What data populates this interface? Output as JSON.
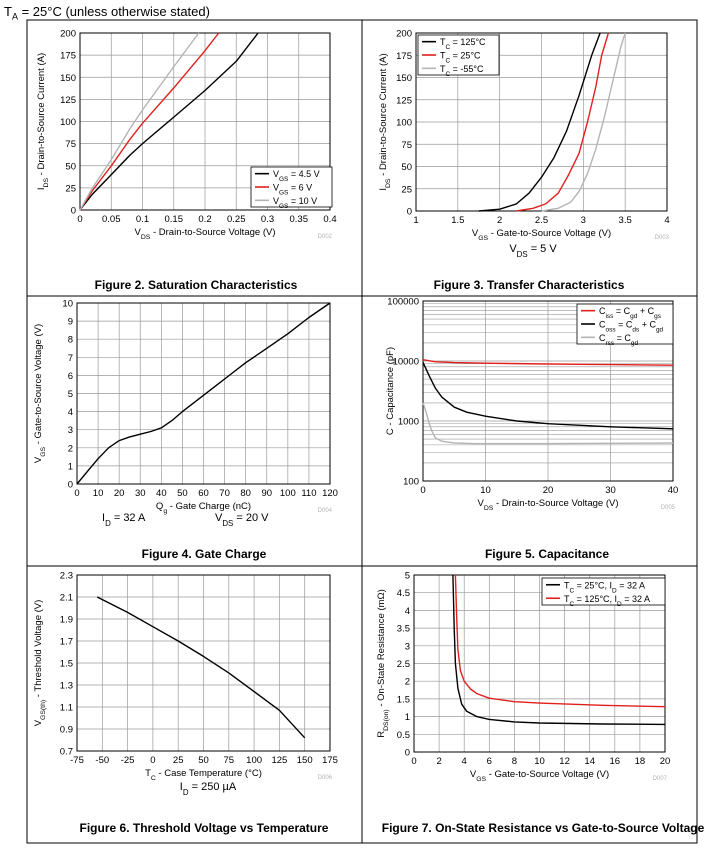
{
  "header": {
    "prefix": "T",
    "sub": "A",
    "suffix": " = 25°C (unless otherwise stated)"
  },
  "chart_data": [
    {
      "type": "line",
      "title": "Figure 2. Saturation Characteristics",
      "id_code": "D002",
      "xlabel": {
        "pre": "V",
        "sub": "DS",
        "post": " - Drain-to-Source Voltage (V)"
      },
      "ylabel": {
        "pre": "I",
        "sub": "DS",
        "post": " - Drain-to-Source Current (A)"
      },
      "xlim": [
        0,
        0.4
      ],
      "ylim": [
        0,
        200
      ],
      "xticks": [
        0,
        0.05,
        0.1,
        0.15,
        0.2,
        0.25,
        0.3,
        0.35,
        0.4
      ],
      "xtick_labels": [
        "0",
        "0.05",
        "0.1",
        "0.15",
        "0.2",
        "0.25",
        "0.3",
        "0.35",
        "0.4"
      ],
      "yticks": [
        0,
        25,
        50,
        75,
        100,
        125,
        150,
        175,
        200
      ],
      "ytick_labels": [
        "0",
        "25",
        "50",
        "75",
        "100",
        "125",
        "150",
        "175",
        "200"
      ],
      "legend_pos": "bottom-right",
      "series": [
        {
          "name_pre": "V",
          "name_sub": "GS",
          "name_post": " = 4.5 V",
          "color": "#000000",
          "x": [
            0,
            0.02,
            0.05,
            0.08,
            0.1,
            0.15,
            0.2,
            0.25,
            0.285
          ],
          "y": [
            0,
            18,
            40,
            62,
            75,
            105,
            135,
            168,
            200
          ]
        },
        {
          "name_pre": "V",
          "name_sub": "GS",
          "name_post": " = 6 V",
          "color": "#e0201c",
          "x": [
            0,
            0.02,
            0.05,
            0.08,
            0.1,
            0.15,
            0.2,
            0.222
          ],
          "y": [
            0,
            22,
            50,
            80,
            98,
            138,
            180,
            200
          ]
        },
        {
          "name_pre": "V",
          "name_sub": "GS",
          "name_post": " = 10 V",
          "color": "#b4b4b4",
          "x": [
            0,
            0.02,
            0.05,
            0.08,
            0.1,
            0.15,
            0.19
          ],
          "y": [
            0,
            25,
            57,
            92,
            113,
            162,
            200
          ]
        }
      ]
    },
    {
      "type": "line",
      "title": "Figure 3. Transfer Characteristics",
      "id_code": "D003",
      "note": {
        "pre": "V",
        "sub": "DS",
        "post": " = 5 V"
      },
      "xlabel": {
        "pre": "V",
        "sub": "GS",
        "post": " - Gate-to-Source Voltage (V)"
      },
      "ylabel": {
        "pre": "I",
        "sub": "DS",
        "post": " - Drain-to-Source Current (A)"
      },
      "xlim": [
        1,
        4
      ],
      "ylim": [
        0,
        200
      ],
      "xticks": [
        1,
        1.5,
        2,
        2.5,
        3,
        3.5,
        4
      ],
      "xtick_labels": [
        "1",
        "1.5",
        "2",
        "2.5",
        "3",
        "3.5",
        "4"
      ],
      "yticks": [
        0,
        25,
        50,
        75,
        100,
        125,
        150,
        175,
        200
      ],
      "ytick_labels": [
        "0",
        "25",
        "50",
        "75",
        "100",
        "125",
        "150",
        "175",
        "200"
      ],
      "legend_pos": "top-left",
      "series": [
        {
          "name_pre": "T",
          "name_sub": "C",
          "name_post": " = 125°C",
          "color": "#000000",
          "x": [
            1.75,
            2.0,
            2.2,
            2.35,
            2.5,
            2.65,
            2.8,
            2.95,
            3.1,
            3.2
          ],
          "y": [
            0,
            2,
            8,
            20,
            38,
            60,
            90,
            130,
            175,
            200
          ]
        },
        {
          "name_pre": "T",
          "name_sub": "C",
          "name_post": " = 25°C",
          "color": "#e0201c",
          "x": [
            2.2,
            2.4,
            2.55,
            2.7,
            2.82,
            2.95,
            3.05,
            3.15,
            3.22,
            3.3
          ],
          "y": [
            0,
            3,
            8,
            20,
            40,
            65,
            100,
            140,
            175,
            200
          ]
        },
        {
          "name_pre": "T",
          "name_sub": "C",
          "name_post": " = -55°C",
          "color": "#b4b4b4",
          "x": [
            2.5,
            2.7,
            2.85,
            2.95,
            3.05,
            3.15,
            3.25,
            3.35,
            3.45,
            3.5
          ],
          "y": [
            0,
            3,
            10,
            22,
            42,
            70,
            105,
            145,
            185,
            200
          ]
        }
      ]
    },
    {
      "type": "line",
      "title": "Figure 4. Gate Charge",
      "id_code": "D004",
      "note": {
        "text": "I",
        "sub": "D",
        "post": " = 32 A",
        "text2": "V",
        "sub2": "DS",
        "post2": " = 20 V"
      },
      "xlabel": {
        "pre": "Q",
        "sub": "g",
        "post": " - Gate Charge (nC)"
      },
      "ylabel": {
        "pre": "V",
        "sub": "GS",
        "post": " - Gate-to-Source Voltage (V)"
      },
      "xlim": [
        0,
        120
      ],
      "ylim": [
        0,
        10
      ],
      "xticks": [
        0,
        10,
        20,
        30,
        40,
        50,
        60,
        70,
        80,
        90,
        100,
        110,
        120
      ],
      "xtick_labels": [
        "0",
        "10",
        "20",
        "30",
        "40",
        "50",
        "60",
        "70",
        "80",
        "90",
        "100",
        "110",
        "120"
      ],
      "yticks": [
        0,
        1,
        2,
        3,
        4,
        5,
        6,
        7,
        8,
        9,
        10
      ],
      "ytick_labels": [
        "0",
        "1",
        "2",
        "3",
        "4",
        "5",
        "6",
        "7",
        "8",
        "9",
        "10"
      ],
      "series": [
        {
          "name": "VGS",
          "color": "#000000",
          "x": [
            0,
            5,
            10,
            15,
            20,
            25,
            30,
            35,
            40,
            45,
            50,
            60,
            70,
            80,
            90,
            100,
            110,
            120
          ],
          "y": [
            0,
            0.7,
            1.4,
            2.0,
            2.4,
            2.6,
            2.75,
            2.9,
            3.1,
            3.5,
            4.0,
            4.9,
            5.8,
            6.7,
            7.5,
            8.3,
            9.2,
            10.0
          ]
        }
      ]
    },
    {
      "type": "line",
      "title": "Figure 5. Capacitance",
      "id_code": "D005",
      "xlabel": {
        "pre": "V",
        "sub": "DS",
        "post": " - Drain-to-Source Voltage (V)"
      },
      "ylabel": {
        "pre": "",
        "sub": "",
        "post": "C - Capacitance (pF)"
      },
      "xlim": [
        0,
        40
      ],
      "ylim": [
        100,
        100000
      ],
      "yscale": "log",
      "xticks": [
        0,
        10,
        20,
        30,
        40
      ],
      "xtick_labels": [
        "0",
        "10",
        "20",
        "30",
        "40"
      ],
      "yticks": [
        100,
        1000,
        10000,
        100000
      ],
      "ytick_labels": [
        "100",
        "1000",
        "10000",
        "100000"
      ],
      "legend_pos": "top-right",
      "series": [
        {
          "name_pre": "C",
          "name_sub": "iss",
          "name_post": " = C",
          "name_sub2": "gd",
          "name_post2": " + C",
          "name_sub3": "gs",
          "color": "#e0201c",
          "x": [
            0,
            2,
            5,
            10,
            20,
            30,
            40
          ],
          "y": [
            10500,
            9700,
            9400,
            9200,
            8900,
            8700,
            8500
          ]
        },
        {
          "name_pre": "C",
          "name_sub": "oss",
          "name_post": " = C",
          "name_sub2": "ds",
          "name_post2": " + C",
          "name_sub3": "gd",
          "color": "#000000",
          "x": [
            0,
            1,
            2,
            3,
            5,
            7,
            10,
            15,
            20,
            30,
            40
          ],
          "y": [
            9500,
            5600,
            3500,
            2500,
            1700,
            1400,
            1200,
            1000,
            900,
            800,
            740
          ]
        },
        {
          "name_pre": "C",
          "name_sub": "rss",
          "name_post": " = C",
          "name_sub2": "gd",
          "name_post2": "",
          "name_sub3": "",
          "color": "#b4b4b4",
          "x": [
            0,
            0.5,
            1,
            1.5,
            2,
            3,
            5,
            8,
            10,
            20,
            30,
            40
          ],
          "y": [
            2000,
            1400,
            900,
            650,
            520,
            460,
            430,
            420,
            420,
            420,
            425,
            430
          ]
        }
      ]
    },
    {
      "type": "line",
      "title": "Figure 6. Threshold Voltage vs Temperature",
      "id_code": "D006",
      "note": {
        "pre": "I",
        "sub": "D",
        "post": " = 250 µA"
      },
      "xlabel": {
        "pre": "T",
        "sub": "C",
        "post": " - Case Temperature (°C)"
      },
      "ylabel": {
        "pre": "V",
        "sub": "GS(th)",
        "post": " - Threshold Voltage (V)"
      },
      "xlim": [
        -75,
        175
      ],
      "ylim": [
        0.7,
        2.3
      ],
      "xticks": [
        -75,
        -50,
        -25,
        0,
        25,
        50,
        75,
        100,
        125,
        150,
        175
      ],
      "xtick_labels": [
        "-75",
        "-50",
        "-25",
        "0",
        "25",
        "50",
        "75",
        "100",
        "125",
        "150",
        "175"
      ],
      "yticks": [
        0.7,
        0.9,
        1.1,
        1.3,
        1.5,
        1.7,
        1.9,
        2.1,
        2.3
      ],
      "ytick_labels": [
        "0.7",
        "0.9",
        "1.1",
        "1.3",
        "1.5",
        "1.7",
        "1.9",
        "2.1",
        "2.3"
      ],
      "series": [
        {
          "name": "VGS(th)",
          "color": "#000000",
          "x": [
            -55,
            -25,
            0,
            25,
            50,
            75,
            100,
            125,
            150
          ],
          "y": [
            2.1,
            1.96,
            1.83,
            1.7,
            1.56,
            1.41,
            1.24,
            1.07,
            0.82
          ]
        }
      ]
    },
    {
      "type": "line",
      "title": "Figure 7. On-State Resistance vs Gate-to-Source Voltage",
      "id_code": "D007",
      "xlabel": {
        "pre": "V",
        "sub": "GS",
        "post": " - Gate-to-Source Voltage (V)"
      },
      "ylabel": {
        "pre": "R",
        "sub": "DS(on)",
        "post": " - On-State Resistance (mΩ)"
      },
      "xlim": [
        0,
        20
      ],
      "ylim": [
        0,
        5
      ],
      "xticks": [
        0,
        2,
        4,
        6,
        8,
        10,
        12,
        14,
        16,
        18,
        20
      ],
      "xtick_labels": [
        "0",
        "2",
        "4",
        "6",
        "8",
        "10",
        "12",
        "14",
        "16",
        "18",
        "20"
      ],
      "yticks": [
        0,
        0.5,
        1,
        1.5,
        2,
        2.5,
        3,
        3.5,
        4,
        4.5,
        5
      ],
      "ytick_labels": [
        "0",
        "0.5",
        "1",
        "1.5",
        "2",
        "2.5",
        "3",
        "3.5",
        "4",
        "4.5",
        "5"
      ],
      "legend_pos": "top-right",
      "series": [
        {
          "name_pre": "T",
          "name_sub": "C",
          "name_post": " = 25°C, I",
          "name_sub2": "D",
          "name_post2": " = 32 A",
          "color": "#000000",
          "x": [
            3.1,
            3.2,
            3.3,
            3.5,
            3.8,
            4.2,
            5,
            6,
            8,
            10,
            15,
            20
          ],
          "y": [
            5.0,
            3.5,
            2.5,
            1.8,
            1.35,
            1.15,
            1.0,
            0.92,
            0.85,
            0.82,
            0.79,
            0.78
          ]
        },
        {
          "name_pre": "T",
          "name_sub": "C",
          "name_post": " = 125°C, I",
          "name_sub2": "D",
          "name_post2": " = 32 A",
          "color": "#e0201c",
          "x": [
            3.3,
            3.4,
            3.5,
            3.7,
            4,
            4.5,
            5,
            6,
            8,
            10,
            15,
            20
          ],
          "y": [
            5.0,
            3.8,
            2.9,
            2.3,
            2.0,
            1.78,
            1.65,
            1.52,
            1.42,
            1.38,
            1.32,
            1.28
          ]
        }
      ]
    }
  ]
}
